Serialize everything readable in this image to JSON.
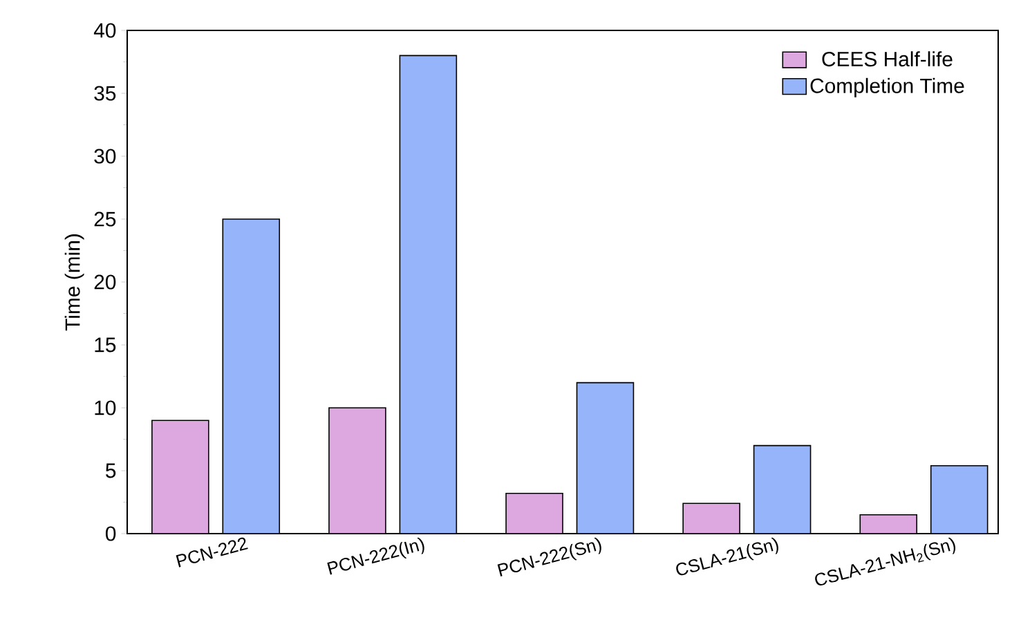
{
  "chart_data": {
    "type": "bar",
    "ylabel": "Time (min)",
    "categories": [
      "PCN-222",
      "PCN-222(In)",
      "PCN-222(Sn)",
      "CSLA-21(Sn)",
      "CSLA-21-NH$_{2}$(Sn)"
    ],
    "series": [
      {
        "name": "CEES Half-life",
        "color": "#dda8e0",
        "values": [
          9,
          10,
          3.2,
          2.4,
          1.5
        ]
      },
      {
        "name": "Completion Time",
        "color": "#95b4fa",
        "values": [
          25,
          38,
          12,
          7,
          5.4
        ]
      }
    ],
    "ylim": [
      0,
      40
    ],
    "yticks": [
      0,
      5,
      10,
      15,
      20,
      25,
      30,
      35,
      40
    ],
    "legend": "top right",
    "grid": false
  }
}
